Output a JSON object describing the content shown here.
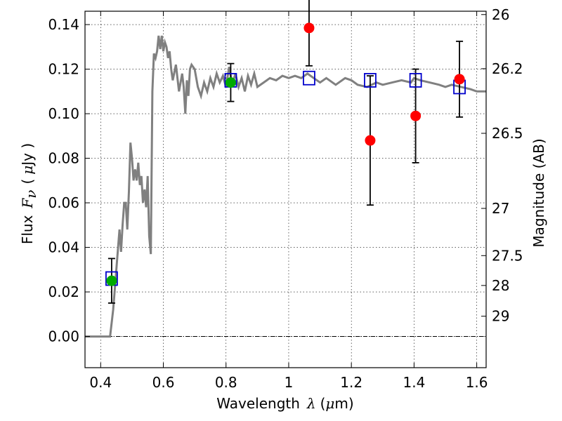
{
  "chart_data": {
    "type": "scatter",
    "xlim": [
      0.35,
      1.63
    ],
    "ylim": [
      -0.014,
      0.146
    ],
    "grid": true,
    "x_ticks": [
      0.4,
      0.6,
      0.8,
      1.0,
      1.2,
      1.4,
      1.6
    ],
    "x_tick_labels": [
      "0.4",
      "0.6",
      "0.8",
      "1",
      "1.2",
      "1.4",
      "1.6"
    ],
    "y_ticks": [
      0.0,
      0.02,
      0.04,
      0.06,
      0.08,
      0.1,
      0.12,
      0.14
    ],
    "y_tick_labels": [
      "0.00",
      "0.02",
      "0.04",
      "0.06",
      "0.08",
      "0.10",
      "0.12",
      "0.14"
    ],
    "xlabel": {
      "prefix": "Wavelength",
      "var": "λ",
      "open": "(",
      "unit_mu": "μ",
      "unit_rest": "m)"
    },
    "ylabel": {
      "prefix": "Flux",
      "var": "F",
      "sub": "ν",
      "open": "(",
      "unit_mu": "μ",
      "unit_rest": "Jy )"
    },
    "y2label": "Magnitude (AB)",
    "y2_ticks": [
      {
        "label": "26",
        "flux": 0.1445
      },
      {
        "label": "26.2",
        "flux": 0.1202
      },
      {
        "label": "26.5",
        "flux": 0.0912
      },
      {
        "label": "27",
        "flux": 0.0575
      },
      {
        "label": "27.5",
        "flux": 0.0363
      },
      {
        "label": "28",
        "flux": 0.0229
      },
      {
        "label": "29",
        "flux": 0.0091
      }
    ],
    "sed_color": "#808080",
    "sed_x": [
      0.35,
      0.41,
      0.42,
      0.43,
      0.44,
      0.45,
      0.46,
      0.465,
      0.47,
      0.475,
      0.48,
      0.485,
      0.49,
      0.495,
      0.5,
      0.505,
      0.51,
      0.515,
      0.52,
      0.525,
      0.53,
      0.535,
      0.54,
      0.545,
      0.55,
      0.555,
      0.56,
      0.565,
      0.57,
      0.575,
      0.58,
      0.585,
      0.59,
      0.595,
      0.6,
      0.605,
      0.61,
      0.615,
      0.62,
      0.625,
      0.63,
      0.64,
      0.65,
      0.66,
      0.665,
      0.67,
      0.675,
      0.68,
      0.685,
      0.69,
      0.7,
      0.71,
      0.72,
      0.73,
      0.74,
      0.75,
      0.76,
      0.77,
      0.78,
      0.79,
      0.8,
      0.81,
      0.82,
      0.83,
      0.84,
      0.85,
      0.86,
      0.87,
      0.88,
      0.89,
      0.9,
      0.92,
      0.94,
      0.96,
      0.98,
      1.0,
      1.02,
      1.04,
      1.06,
      1.08,
      1.1,
      1.12,
      1.15,
      1.18,
      1.2,
      1.22,
      1.25,
      1.28,
      1.3,
      1.33,
      1.36,
      1.39,
      1.4,
      1.42,
      1.45,
      1.48,
      1.5,
      1.52,
      1.55,
      1.58,
      1.6,
      1.63
    ],
    "sed_y": [
      0.0,
      0.0,
      0.0,
      0.0,
      0.012,
      0.03,
      0.048,
      0.038,
      0.05,
      0.06,
      0.06,
      0.048,
      0.065,
      0.087,
      0.08,
      0.07,
      0.075,
      0.07,
      0.078,
      0.068,
      0.072,
      0.06,
      0.066,
      0.058,
      0.072,
      0.045,
      0.037,
      0.11,
      0.127,
      0.125,
      0.128,
      0.135,
      0.129,
      0.135,
      0.128,
      0.132,
      0.13,
      0.125,
      0.128,
      0.12,
      0.115,
      0.122,
      0.11,
      0.118,
      0.112,
      0.1,
      0.115,
      0.108,
      0.12,
      0.122,
      0.12,
      0.112,
      0.108,
      0.114,
      0.11,
      0.116,
      0.112,
      0.118,
      0.114,
      0.117,
      0.112,
      0.121,
      0.113,
      0.118,
      0.112,
      0.116,
      0.11,
      0.117,
      0.113,
      0.118,
      0.112,
      0.114,
      0.116,
      0.115,
      0.117,
      0.116,
      0.117,
      0.116,
      0.118,
      0.116,
      0.114,
      0.116,
      0.113,
      0.116,
      0.115,
      0.113,
      0.112,
      0.114,
      0.113,
      0.114,
      0.115,
      0.114,
      0.116,
      0.115,
      0.114,
      0.113,
      0.112,
      0.113,
      0.112,
      0.111,
      0.11,
      0.11
    ],
    "series": [
      {
        "marker": "square",
        "color": "#0000cc",
        "points": [
          {
            "x": 0.435,
            "y": 0.026
          },
          {
            "x": 0.815,
            "y": 0.115
          },
          {
            "x": 1.065,
            "y": 0.116
          },
          {
            "x": 1.26,
            "y": 0.115
          },
          {
            "x": 1.405,
            "y": 0.115
          },
          {
            "x": 1.545,
            "y": 0.112
          }
        ]
      },
      {
        "marker": "circle",
        "color": "#00aa00",
        "points": [
          {
            "x": 0.435,
            "y": 0.025,
            "err": 0.01
          },
          {
            "x": 0.815,
            "y": 0.114,
            "err": 0.0085
          }
        ]
      },
      {
        "marker": "circle",
        "color": "#ff0000",
        "points": [
          {
            "x": 1.065,
            "y": 0.1385,
            "err": 0.017
          },
          {
            "x": 1.26,
            "y": 0.088,
            "err": 0.029
          },
          {
            "x": 1.405,
            "y": 0.099,
            "err": 0.021
          },
          {
            "x": 1.545,
            "y": 0.1155,
            "err": 0.017
          }
        ]
      }
    ]
  }
}
